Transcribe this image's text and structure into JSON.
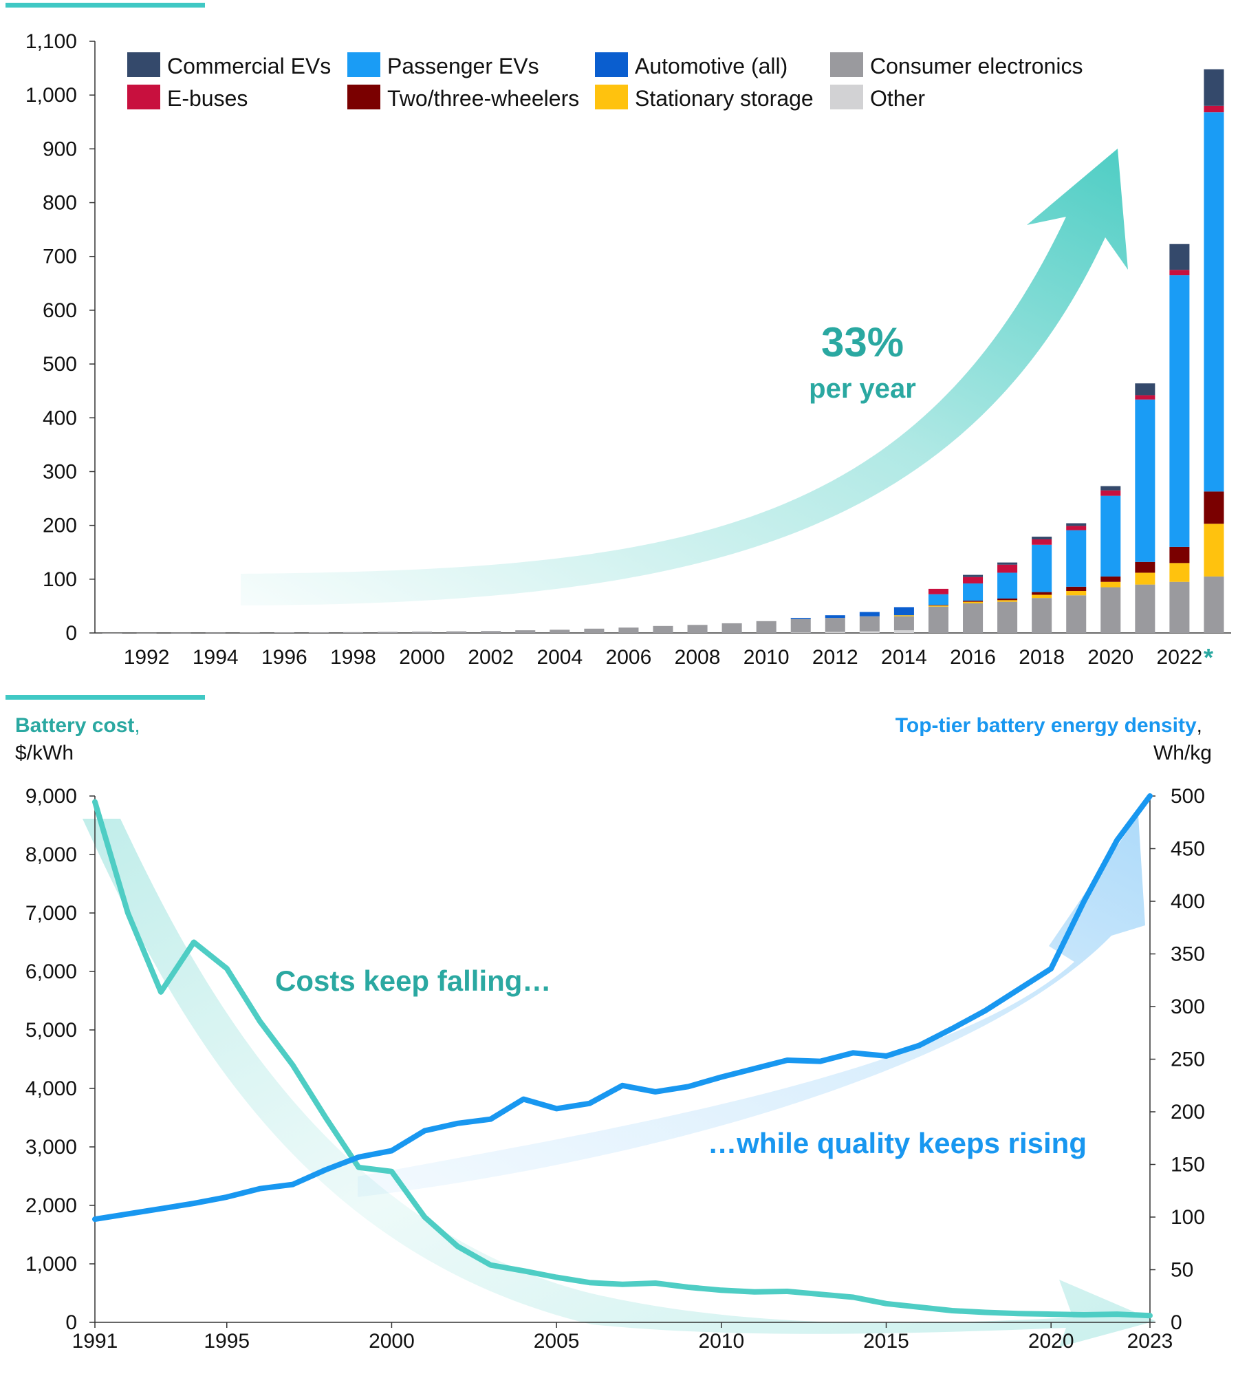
{
  "colors": {
    "commercial_evs": "#34496b",
    "e_buses": "#c8103e",
    "passenger_evs": "#1a9cf5",
    "two_three_wheelers": "#7a0000",
    "automotive_all": "#0a5ecf",
    "stationary_storage": "#ffc20e",
    "consumer_electronics": "#9a9a9e",
    "other": "#d2d2d4",
    "teal": "#4ecdc4",
    "teal_text": "#2aa8a1",
    "blue": "#1897f0"
  },
  "chart_data": [
    {
      "type": "bar",
      "stacked": true,
      "ylim": [
        0,
        1100
      ],
      "yticks": [
        "0",
        "100",
        "200",
        "300",
        "400",
        "500",
        "600",
        "700",
        "800",
        "900",
        "1,000",
        "1,100"
      ],
      "x_tick_labels": [
        "1992",
        "1994",
        "1996",
        "1998",
        "2000",
        "2002",
        "2004",
        "2006",
        "2008",
        "2010",
        "2012",
        "2014",
        "2016",
        "2018",
        "2020",
        "2022"
      ],
      "last_bar_marker": "*",
      "categories": [
        "1991",
        "1992",
        "1993",
        "1994",
        "1995",
        "1996",
        "1997",
        "1998",
        "1999",
        "2000",
        "2001",
        "2002",
        "2003",
        "2004",
        "2005",
        "2006",
        "2007",
        "2008",
        "2009",
        "2010",
        "2011",
        "2012",
        "2013",
        "2014",
        "2015",
        "2016",
        "2017",
        "2018",
        "2019",
        "2020",
        "2021",
        "2022",
        "2023"
      ],
      "legend": [
        "Commercial EVs",
        "E-buses",
        "Passenger EVs",
        "Two/three-wheelers",
        "Automotive (all)",
        "Stationary storage",
        "Consumer electronics",
        "Other"
      ],
      "series": [
        {
          "name": "Other",
          "color_key": "other",
          "values": [
            0,
            0,
            0,
            0,
            0,
            0,
            0,
            0,
            0,
            0,
            0,
            0,
            0,
            0,
            0,
            0,
            0,
            0,
            0,
            0,
            1,
            2,
            3,
            5,
            0,
            0,
            0,
            0,
            0,
            0,
            0,
            0,
            0
          ]
        },
        {
          "name": "Consumer electronics",
          "color_key": "consumer_electronics",
          "values": [
            0.1,
            0.2,
            0.3,
            0.4,
            0.6,
            0.8,
            1,
            1.5,
            2,
            2.5,
            3,
            3.5,
            5,
            6,
            8,
            10,
            13,
            15,
            18,
            22,
            25,
            26,
            28,
            26,
            49,
            55,
            58,
            65,
            70,
            85,
            90,
            95,
            105
          ]
        },
        {
          "name": "Stationary storage",
          "color_key": "stationary_storage",
          "values": [
            0,
            0,
            0,
            0,
            0,
            0,
            0,
            0,
            0,
            0,
            0,
            0,
            0,
            0,
            0,
            0,
            0,
            0,
            0,
            0,
            0,
            0,
            0,
            2,
            2,
            3,
            3,
            6,
            8,
            10,
            22,
            35,
            98
          ]
        },
        {
          "name": "Two/three-wheelers",
          "color_key": "two_three_wheelers",
          "values": [
            0,
            0,
            0,
            0,
            0,
            0,
            0,
            0,
            0,
            0,
            0,
            0,
            0,
            0,
            0,
            0,
            0,
            0,
            0,
            0,
            0,
            0,
            0,
            0,
            1,
            2,
            3,
            5,
            8,
            10,
            20,
            30,
            60
          ]
        },
        {
          "name": "Automotive (all)",
          "color_key": "automotive_all",
          "values": [
            0,
            0,
            0,
            0,
            0,
            0,
            0,
            0,
            0,
            0,
            0,
            0,
            0,
            0,
            0,
            0,
            0,
            0,
            0,
            0,
            2,
            5,
            8,
            15,
            0,
            0,
            0,
            0,
            0,
            0,
            0,
            0,
            0
          ]
        },
        {
          "name": "Passenger EVs",
          "color_key": "passenger_evs",
          "values": [
            0,
            0,
            0,
            0,
            0,
            0,
            0,
            0,
            0,
            0,
            0,
            0,
            0,
            0,
            0,
            0,
            0,
            0,
            0,
            0,
            0,
            0,
            0,
            0,
            20,
            32,
            48,
            88,
            105,
            150,
            302,
            505,
            705
          ]
        },
        {
          "name": "E-buses",
          "color_key": "e_buses",
          "values": [
            0,
            0,
            0,
            0,
            0,
            0,
            0,
            0,
            0,
            0,
            0,
            0,
            0,
            0,
            0,
            0,
            0,
            0,
            0,
            0,
            0,
            0,
            0,
            0,
            10,
            12,
            15,
            10,
            8,
            10,
            8,
            10,
            12
          ]
        },
        {
          "name": "Commercial EVs",
          "color_key": "commercial_evs",
          "values": [
            0,
            0,
            0,
            0,
            0,
            0,
            0,
            0,
            0,
            0,
            0,
            0,
            0,
            0,
            0,
            0,
            0,
            0,
            0,
            0,
            0,
            0,
            0,
            0,
            0,
            4,
            4,
            5,
            5,
            8,
            22,
            48,
            68
          ]
        }
      ],
      "annotation": {
        "value": "33%",
        "text": "per year"
      }
    },
    {
      "type": "line",
      "x": [
        1991,
        1992,
        1993,
        1994,
        1995,
        1996,
        1997,
        1998,
        1999,
        2000,
        2001,
        2002,
        2003,
        2004,
        2005,
        2006,
        2007,
        2008,
        2009,
        2010,
        2011,
        2012,
        2013,
        2014,
        2015,
        2016,
        2017,
        2018,
        2019,
        2020,
        2021,
        2022,
        2023
      ],
      "xticks": [
        "1991",
        "1995",
        "2000",
        "2005",
        "2010",
        "2015",
        "2020",
        "2023"
      ],
      "y_left": {
        "title": "Battery cost",
        "unit": "$/kWh",
        "ylim": [
          0,
          9000
        ],
        "ticks": [
          "0",
          "1,000",
          "2,000",
          "3,000",
          "4,000",
          "5,000",
          "6,000",
          "7,000",
          "8,000",
          "9,000"
        ]
      },
      "y_right": {
        "title": "Top-tier battery energy density",
        "unit": "Wh/kg",
        "ylim": [
          0,
          500
        ],
        "ticks": [
          "0",
          "50",
          "100",
          "150",
          "200",
          "250",
          "300",
          "350",
          "400",
          "450",
          "500"
        ]
      },
      "series": [
        {
          "name": "Battery cost",
          "axis": "left",
          "color_key": "teal",
          "values": [
            8900,
            7000,
            5650,
            6500,
            6050,
            5150,
            4400,
            3500,
            2650,
            2580,
            1800,
            1300,
            980,
            880,
            770,
            680,
            650,
            670,
            600,
            550,
            520,
            530,
            480,
            430,
            320,
            260,
            200,
            170,
            150,
            140,
            130,
            140,
            115
          ]
        },
        {
          "name": "Top-tier battery energy density",
          "axis": "right",
          "color_key": "blue",
          "values": [
            98,
            103,
            108,
            113,
            119,
            127,
            131,
            145,
            157,
            163,
            182,
            189,
            193,
            212,
            203,
            208,
            225,
            219,
            224,
            233,
            241,
            249,
            248,
            256,
            253,
            263,
            279,
            296,
            316,
            336,
            400,
            458,
            500
          ]
        }
      ],
      "annotations": {
        "falling": "Costs keep falling…",
        "rising": "…while quality keeps rising"
      }
    }
  ]
}
